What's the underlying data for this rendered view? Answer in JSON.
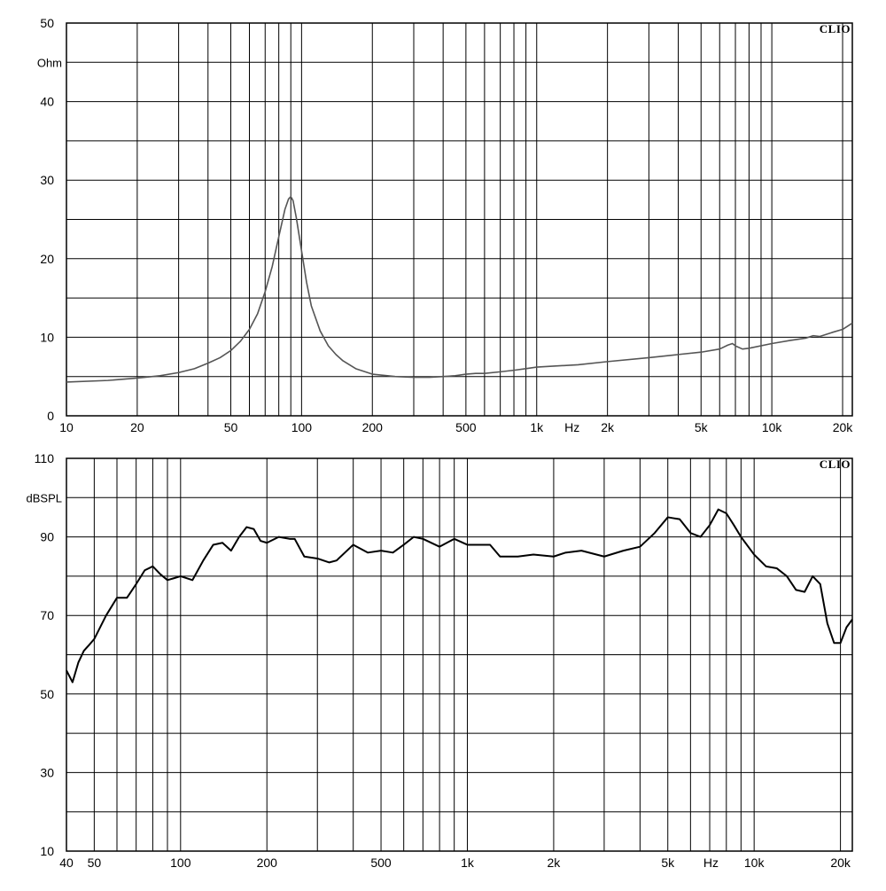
{
  "chart_data": [
    {
      "type": "line",
      "title": "",
      "watermark": "CLIO",
      "xlabel": "Hz",
      "ylabel": "Ohm",
      "x_scale": "log",
      "xlim": [
        10,
        22000
      ],
      "ylim": [
        0,
        50
      ],
      "grid": true,
      "x_tick_labels": [
        {
          "value": 10,
          "label": "10"
        },
        {
          "value": 20,
          "label": "20"
        },
        {
          "value": 50,
          "label": "50"
        },
        {
          "value": 100,
          "label": "100"
        },
        {
          "value": 200,
          "label": "200"
        },
        {
          "value": 500,
          "label": "500"
        },
        {
          "value": 1000,
          "label": "1k"
        },
        {
          "value": 2000,
          "label": "2k"
        },
        {
          "value": 5000,
          "label": "5k"
        },
        {
          "value": 10000,
          "label": "10k"
        },
        {
          "value": 20000,
          "label": "20k"
        }
      ],
      "x_unit_at": 1414,
      "y_tick_labels": [
        {
          "value": 0,
          "label": "0"
        },
        {
          "value": 10,
          "label": "10"
        },
        {
          "value": 20,
          "label": "20"
        },
        {
          "value": 30,
          "label": "30"
        },
        {
          "value": 40,
          "label": "40"
        },
        {
          "value": 50,
          "label": "50"
        }
      ],
      "y_unit_at": 45,
      "y_gridlines": [
        0,
        5,
        10,
        15,
        20,
        25,
        30,
        35,
        40,
        45,
        50
      ],
      "series": [
        {
          "color": "#555555",
          "x": [
            10,
            15,
            20,
            25,
            30,
            35,
            40,
            45,
            50,
            55,
            60,
            65,
            70,
            75,
            80,
            85,
            88,
            90,
            92,
            95,
            100,
            105,
            110,
            120,
            130,
            140,
            150,
            170,
            200,
            250,
            300,
            350,
            400,
            450,
            500,
            550,
            600,
            700,
            800,
            900,
            1000,
            1500,
            2000,
            3000,
            4000,
            5000,
            6000,
            6500,
            6800,
            7000,
            7500,
            8000,
            10000,
            12000,
            14000,
            15000,
            16000,
            18000,
            20000,
            22000
          ],
          "y": [
            4.3,
            4.5,
            4.8,
            5.1,
            5.5,
            6.0,
            6.7,
            7.4,
            8.3,
            9.5,
            11.0,
            13.0,
            15.8,
            19.0,
            22.8,
            26.3,
            27.6,
            27.9,
            27.4,
            25.2,
            21.0,
            17.0,
            14.0,
            10.8,
            8.9,
            7.8,
            7.0,
            6.0,
            5.3,
            5.0,
            4.9,
            4.9,
            5.0,
            5.1,
            5.3,
            5.4,
            5.4,
            5.6,
            5.8,
            6.0,
            6.2,
            6.5,
            6.9,
            7.4,
            7.8,
            8.1,
            8.5,
            9.0,
            9.2,
            8.9,
            8.5,
            8.6,
            9.2,
            9.6,
            9.9,
            10.2,
            10.1,
            10.6,
            11.0,
            11.8
          ]
        }
      ]
    },
    {
      "type": "line",
      "title": "",
      "watermark": "CLIO",
      "xlabel": "Hz",
      "ylabel": "dBSPL",
      "x_scale": "log",
      "xlim": [
        40,
        22000
      ],
      "ylim": [
        10,
        110
      ],
      "grid": true,
      "x_tick_labels": [
        {
          "value": 40,
          "label": "40"
        },
        {
          "value": 50,
          "label": "50"
        },
        {
          "value": 100,
          "label": "100"
        },
        {
          "value": 200,
          "label": "200"
        },
        {
          "value": 500,
          "label": "500"
        },
        {
          "value": 1000,
          "label": "1k"
        },
        {
          "value": 2000,
          "label": "2k"
        },
        {
          "value": 5000,
          "label": "5k"
        },
        {
          "value": 10000,
          "label": "10k"
        },
        {
          "value": 20000,
          "label": "20k"
        }
      ],
      "x_unit_at": 7071,
      "y_tick_labels": [
        {
          "value": 10,
          "label": "10"
        },
        {
          "value": 30,
          "label": "30"
        },
        {
          "value": 50,
          "label": "50"
        },
        {
          "value": 70,
          "label": "70"
        },
        {
          "value": 90,
          "label": "90"
        },
        {
          "value": 110,
          "label": "110"
        }
      ],
      "y_unit_at": 100,
      "y_gridlines": [
        10,
        20,
        30,
        40,
        50,
        60,
        70,
        80,
        90,
        100,
        110
      ],
      "series": [
        {
          "color": "#000000",
          "x": [
            40,
            42,
            44,
            46,
            48,
            50,
            55,
            60,
            65,
            70,
            75,
            80,
            85,
            90,
            95,
            100,
            110,
            120,
            130,
            140,
            150,
            160,
            170,
            180,
            190,
            200,
            220,
            240,
            250,
            270,
            300,
            330,
            350,
            400,
            450,
            500,
            550,
            600,
            650,
            700,
            800,
            900,
            1000,
            1100,
            1200,
            1300,
            1500,
            1700,
            2000,
            2200,
            2500,
            3000,
            3500,
            4000,
            4500,
            5000,
            5500,
            6000,
            6500,
            7000,
            7500,
            8000,
            8500,
            9000,
            10000,
            11000,
            12000,
            13000,
            14000,
            15000,
            16000,
            17000,
            18000,
            19000,
            20000,
            21000,
            22000
          ],
          "y": [
            56,
            53,
            58,
            61,
            62.5,
            64,
            70,
            74.5,
            74.5,
            78,
            81.5,
            82.5,
            80.5,
            79,
            79.5,
            80,
            79,
            84,
            88,
            88.5,
            86.5,
            90,
            92.5,
            92,
            89,
            88.5,
            90,
            89.5,
            89.5,
            85,
            84.5,
            83.5,
            84,
            88,
            86,
            86.5,
            86,
            88,
            90,
            89.5,
            87.5,
            89.5,
            88,
            88,
            88,
            85,
            85,
            85.5,
            85,
            86,
            86.5,
            85,
            86.5,
            87.5,
            91,
            95,
            94.5,
            91,
            90,
            93,
            97,
            96,
            93,
            90,
            85.5,
            82.5,
            82,
            80,
            76.5,
            76,
            80,
            78,
            68,
            63,
            63,
            67,
            69
          ]
        }
      ]
    }
  ]
}
